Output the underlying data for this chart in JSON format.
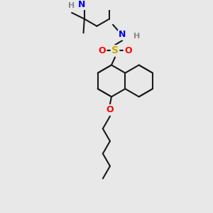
{
  "bg_color": "#e8e8e8",
  "bond_color": "#1a1a1a",
  "bond_width": 1.5,
  "atom_colors": {
    "O": "#ff0000",
    "S": "#ccaa00",
    "N": "#0000ee",
    "H_light": "#888888",
    "C": "#1a1a1a"
  },
  "font_size_atom": 8.5,
  "font_size_H": 7.5
}
